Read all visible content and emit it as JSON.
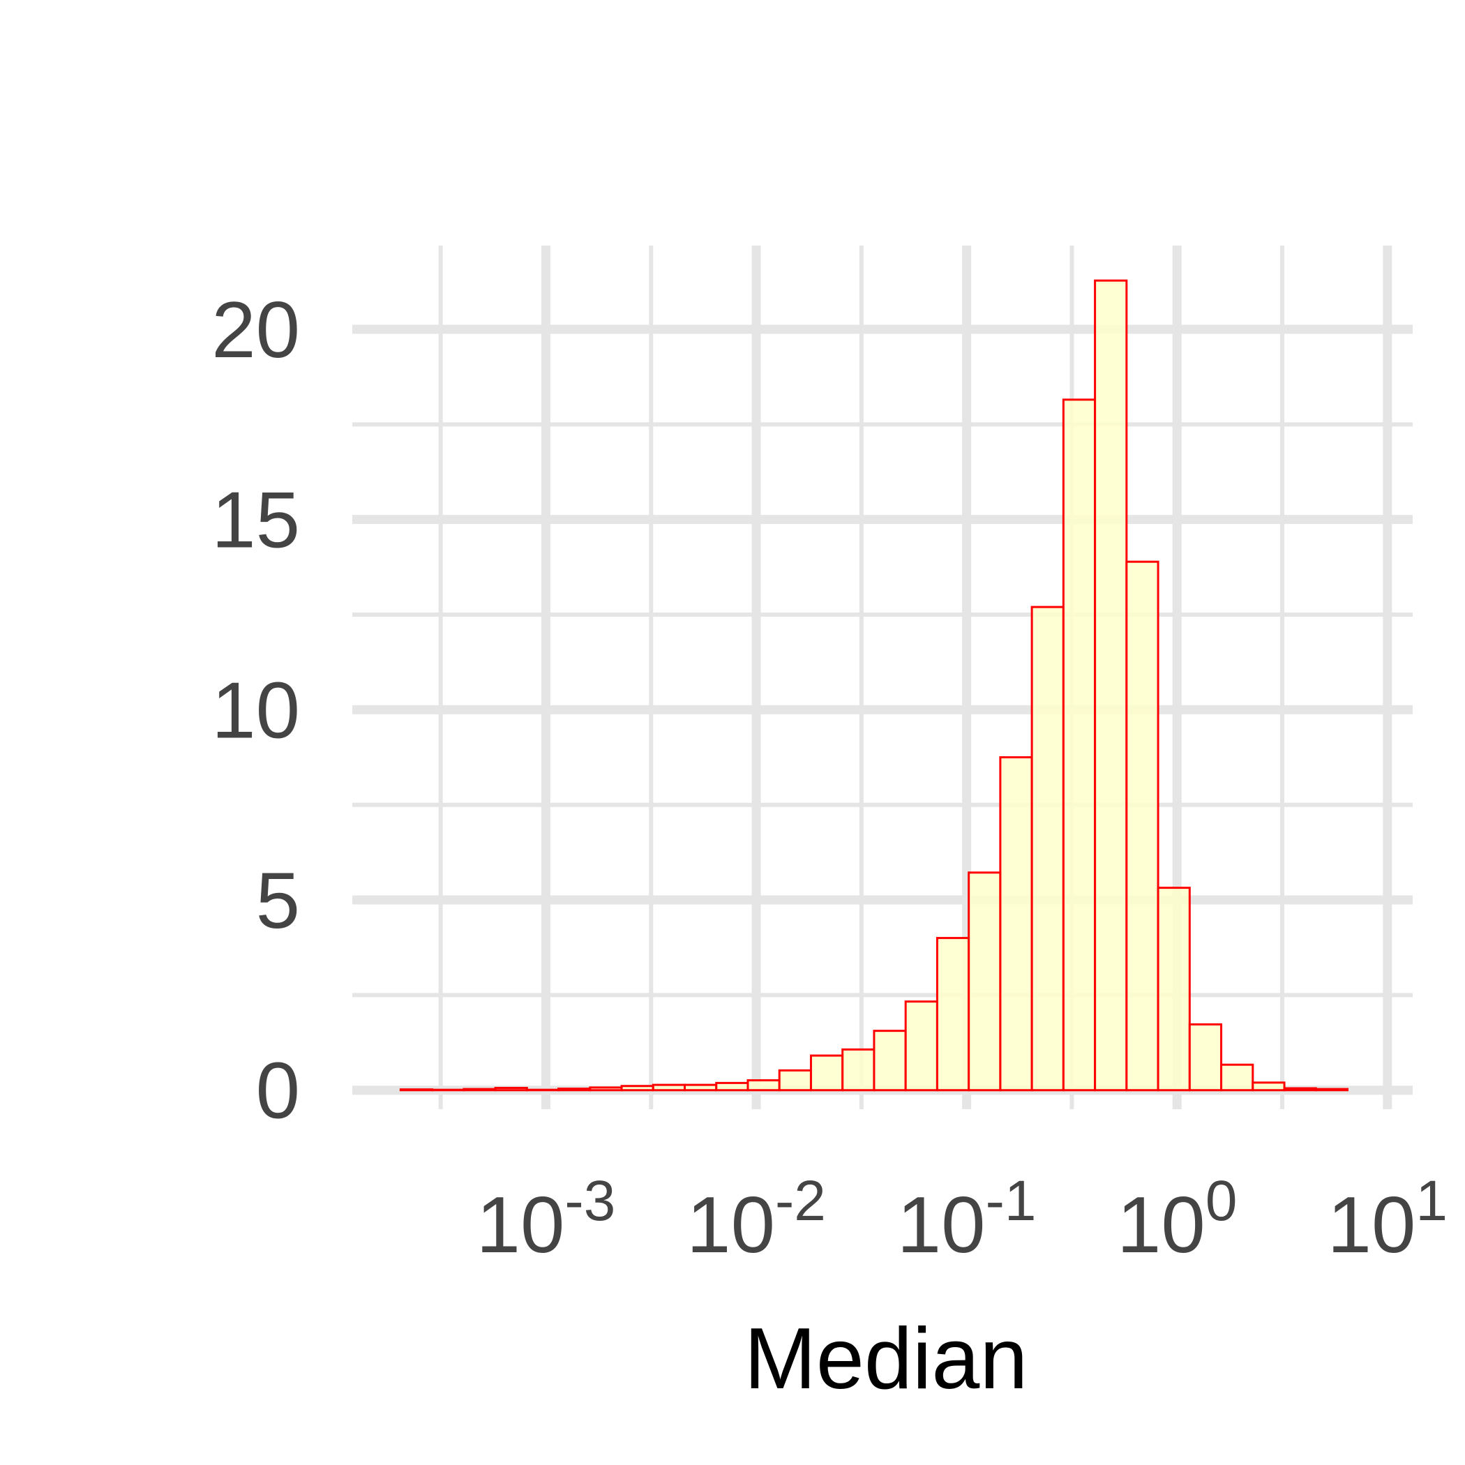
{
  "chart_data": {
    "type": "bar",
    "title": "",
    "xlabel": "Median",
    "ylabel": "",
    "x_scale": "log10",
    "xlim_log10": [
      -3.92,
      1.12
    ],
    "ylim": [
      -0.5,
      22.2
    ],
    "grid": true,
    "y_ticks": [
      0,
      5,
      10,
      15,
      20
    ],
    "y_tick_labels": [
      "0",
      "5",
      "10",
      "15",
      "20"
    ],
    "x_ticks_log10": [
      -3,
      -2,
      -1,
      0,
      1
    ],
    "x_tick_labels": [
      {
        "base": "10",
        "exp": "-3"
      },
      {
        "base": "10",
        "exp": "-2"
      },
      {
        "base": "10",
        "exp": "-1"
      },
      {
        "base": "10",
        "exp": "0"
      },
      {
        "base": "10",
        "exp": "1"
      }
    ],
    "bin_edges_log10": [
      -3.69,
      -3.54,
      -3.39,
      -3.24,
      -3.09,
      -2.94,
      -2.79,
      -2.64,
      -2.49,
      -2.34,
      -2.19,
      -2.04,
      -1.89,
      -1.74,
      -1.59,
      -1.44,
      -1.29,
      -1.14,
      -0.99,
      -0.84,
      -0.69,
      -0.54,
      -0.39,
      -0.24,
      -0.09,
      0.06,
      0.21,
      0.36,
      0.51,
      0.66,
      0.81
    ],
    "counts": [
      0.02,
      0.01,
      0.03,
      0.06,
      0.01,
      0.04,
      0.07,
      0.11,
      0.14,
      0.14,
      0.19,
      0.26,
      0.52,
      0.91,
      1.07,
      1.56,
      2.33,
      4.0,
      5.72,
      8.75,
      12.7,
      18.15,
      21.28,
      13.89,
      5.32,
      1.73,
      0.67,
      0.2,
      0.05,
      0.03
    ],
    "colors": {
      "bar_fill": "#ffffcc",
      "bar_stroke": "#ff0000",
      "grid": "#e5e5e5",
      "tick_text": "#444444",
      "axis_title": "#000000",
      "background": "#ffffff"
    }
  }
}
